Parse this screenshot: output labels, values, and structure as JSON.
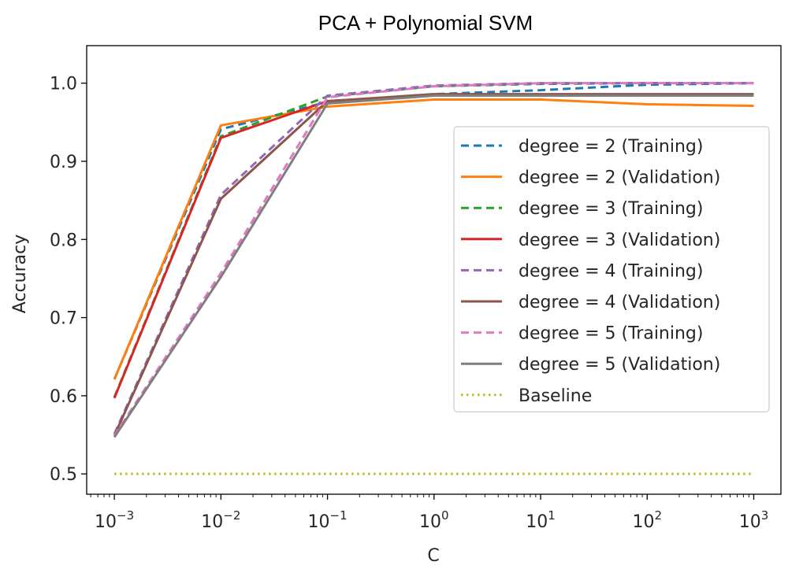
{
  "chart_data": {
    "type": "line",
    "title": "PCA + Polynomial SVM",
    "xlabel": "C",
    "ylabel": "Accuracy",
    "xscale": "log",
    "x": [
      0.001,
      0.01,
      0.1,
      1,
      10,
      100,
      1000
    ],
    "x_ticks": [
      {
        "base": "10",
        "exp": "−3"
      },
      {
        "base": "10",
        "exp": "−2"
      },
      {
        "base": "10",
        "exp": "−1"
      },
      {
        "base": "10",
        "exp": "0"
      },
      {
        "base": "10",
        "exp": "1"
      },
      {
        "base": "10",
        "exp": "2"
      },
      {
        "base": "10",
        "exp": "3"
      }
    ],
    "y_ticks": [
      "0.5",
      "0.6",
      "0.7",
      "0.8",
      "0.9",
      "1.0"
    ],
    "xlim": [
      0.00055,
      1800
    ],
    "ylim": [
      0.474,
      1.048
    ],
    "grid": false,
    "legend_position": "center-right",
    "series": [
      {
        "name": "degree = 2 (Training)",
        "color": "#1f77b4",
        "dash": "dashed",
        "values": [
          0.621,
          0.941,
          0.976,
          0.986,
          0.991,
          0.998,
          1.0
        ]
      },
      {
        "name": "degree = 2 (Validation)",
        "color": "#ff7f0e",
        "dash": "solid",
        "values": [
          0.621,
          0.946,
          0.97,
          0.979,
          0.979,
          0.973,
          0.971
        ]
      },
      {
        "name": "degree = 3 (Training)",
        "color": "#2ca02c",
        "dash": "dashed",
        "values": [
          0.598,
          0.932,
          0.983,
          0.996,
          0.999,
          1.0,
          1.0
        ]
      },
      {
        "name": "degree = 3 (Validation)",
        "color": "#d62728",
        "dash": "solid",
        "values": [
          0.597,
          0.93,
          0.977,
          0.985,
          0.985,
          0.985,
          0.985
        ]
      },
      {
        "name": "degree = 4 (Training)",
        "color": "#9467bd",
        "dash": "dashed",
        "values": [
          0.551,
          0.857,
          0.984,
          0.997,
          1.0,
          1.0,
          1.0
        ]
      },
      {
        "name": "degree = 4 (Validation)",
        "color": "#8c564b",
        "dash": "solid",
        "values": [
          0.549,
          0.852,
          0.977,
          0.986,
          0.986,
          0.986,
          0.986
        ]
      },
      {
        "name": "degree = 5 (Training)",
        "color": "#e377c2",
        "dash": "dashed",
        "values": [
          0.549,
          0.757,
          0.982,
          0.996,
          1.0,
          1.0,
          1.0
        ]
      },
      {
        "name": "degree = 5 (Validation)",
        "color": "#7f7f7f",
        "dash": "solid",
        "values": [
          0.547,
          0.752,
          0.974,
          0.984,
          0.984,
          0.984,
          0.984
        ]
      },
      {
        "name": "Baseline",
        "color": "#bcbd22",
        "dash": "dotted",
        "values": [
          0.5,
          0.5,
          0.5,
          0.5,
          0.5,
          0.5,
          0.5
        ]
      }
    ]
  }
}
